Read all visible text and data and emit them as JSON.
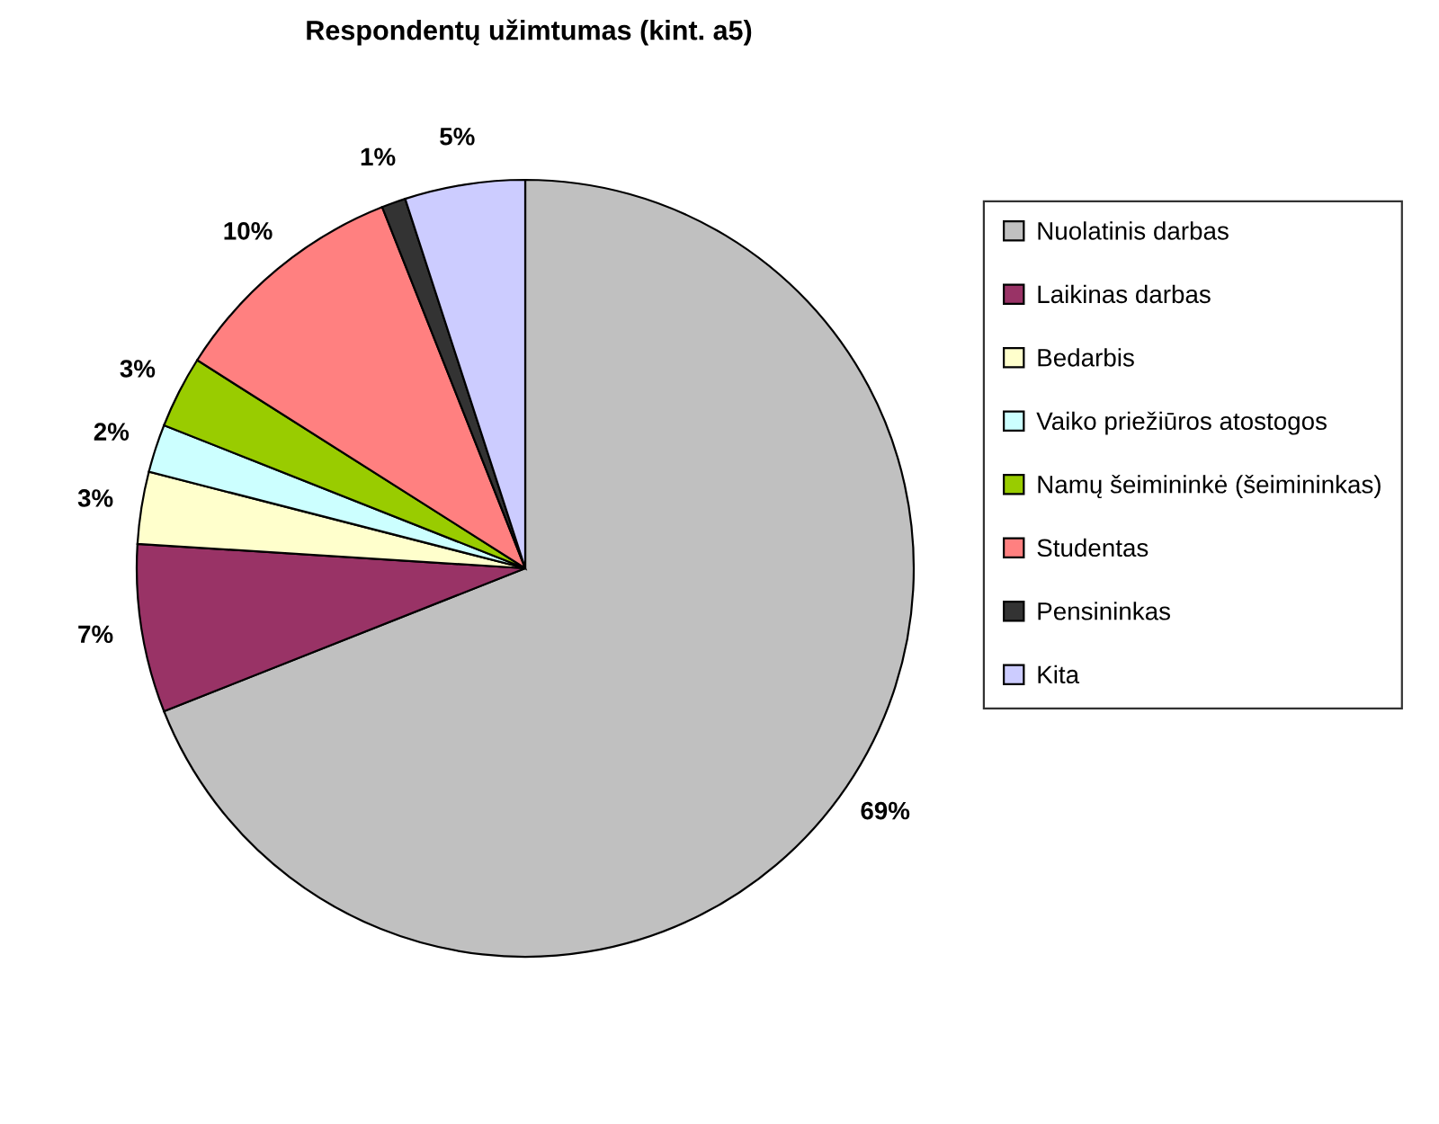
{
  "chart_data": {
    "type": "pie",
    "title": "Respondentų užimtumas (kint. a5)",
    "categories": [
      "Nuolatinis darbas",
      "Laikinas darbas",
      "Bedarbis",
      "Vaiko priežiūros atostogos",
      "Namų šeimininkė (šeimininkas)",
      "Studentas",
      "Pensininkas",
      "Kita"
    ],
    "values": [
      69,
      7,
      3,
      2,
      3,
      10,
      1,
      5
    ],
    "value_labels": [
      "69%",
      "7%",
      "3%",
      "2%",
      "3%",
      "10%",
      "1%",
      "5%"
    ],
    "colors": [
      "#c0c0c0",
      "#993366",
      "#ffffcc",
      "#ccffff",
      "#99cc00",
      "#ff8080",
      "#333333",
      "#ccccff"
    ],
    "legend": "right"
  }
}
